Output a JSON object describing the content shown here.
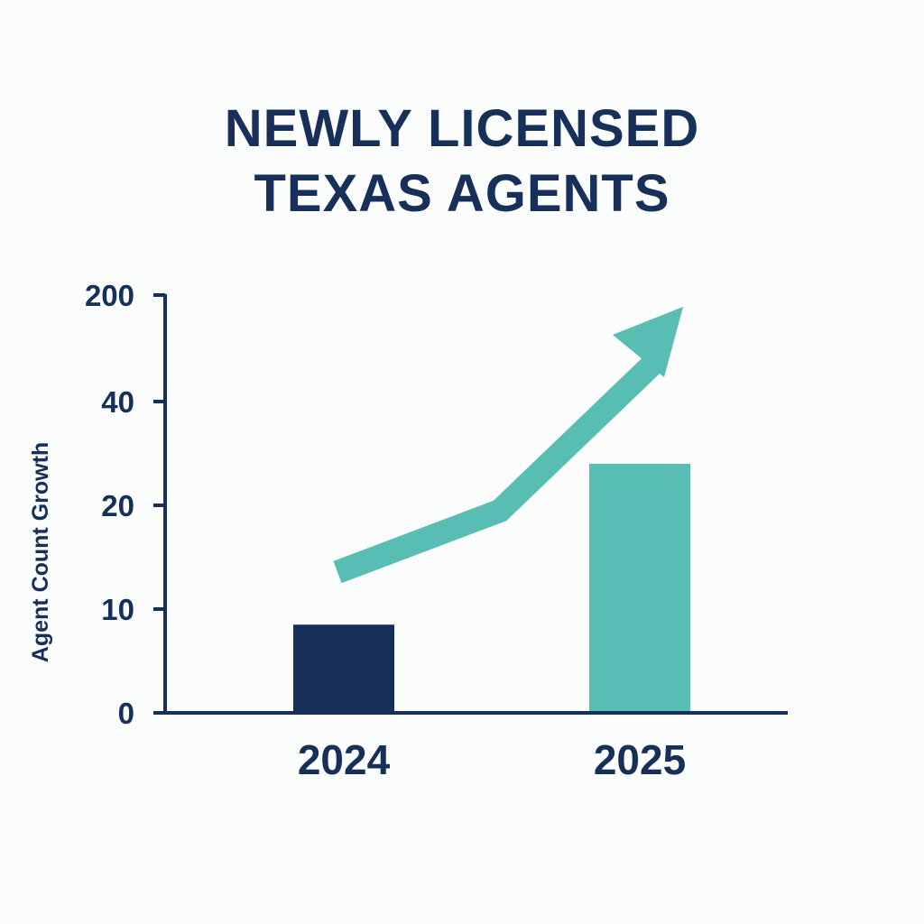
{
  "colors": {
    "text": "#17305a",
    "axis": "#17305a",
    "bar_2024": "#17305a",
    "bar_2025": "#58bdb3",
    "arrow": "#58bdb3",
    "background": "#fbfcfc"
  },
  "chart_data": {
    "type": "bar",
    "title": [
      "NEWLY LICENSED",
      "TEXAS AGENTS"
    ],
    "xlabel": "",
    "ylabel": "Agent Count Growth",
    "categories": [
      "2024",
      "2025"
    ],
    "series": [
      {
        "values": [
          8.5,
          28
        ],
        "colors": [
          "#17305a",
          "#58bdb3"
        ]
      }
    ],
    "y_ticks": [
      {
        "label": "0",
        "value": 0
      },
      {
        "label": "10",
        "value": 10
      },
      {
        "label": "20",
        "value": 20
      },
      {
        "label": "40",
        "value": 40
      },
      {
        "label": "200",
        "value": 200
      }
    ],
    "ylim_label_range": [
      0,
      200
    ],
    "y_scale": "non-uniform (tick labels 0, 10, 20, 40, 200 evenly spaced)",
    "grid": false,
    "legend": "none",
    "annotations": [
      {
        "type": "trend-arrow",
        "direction": "upward",
        "color": "#58bdb3"
      }
    ]
  }
}
